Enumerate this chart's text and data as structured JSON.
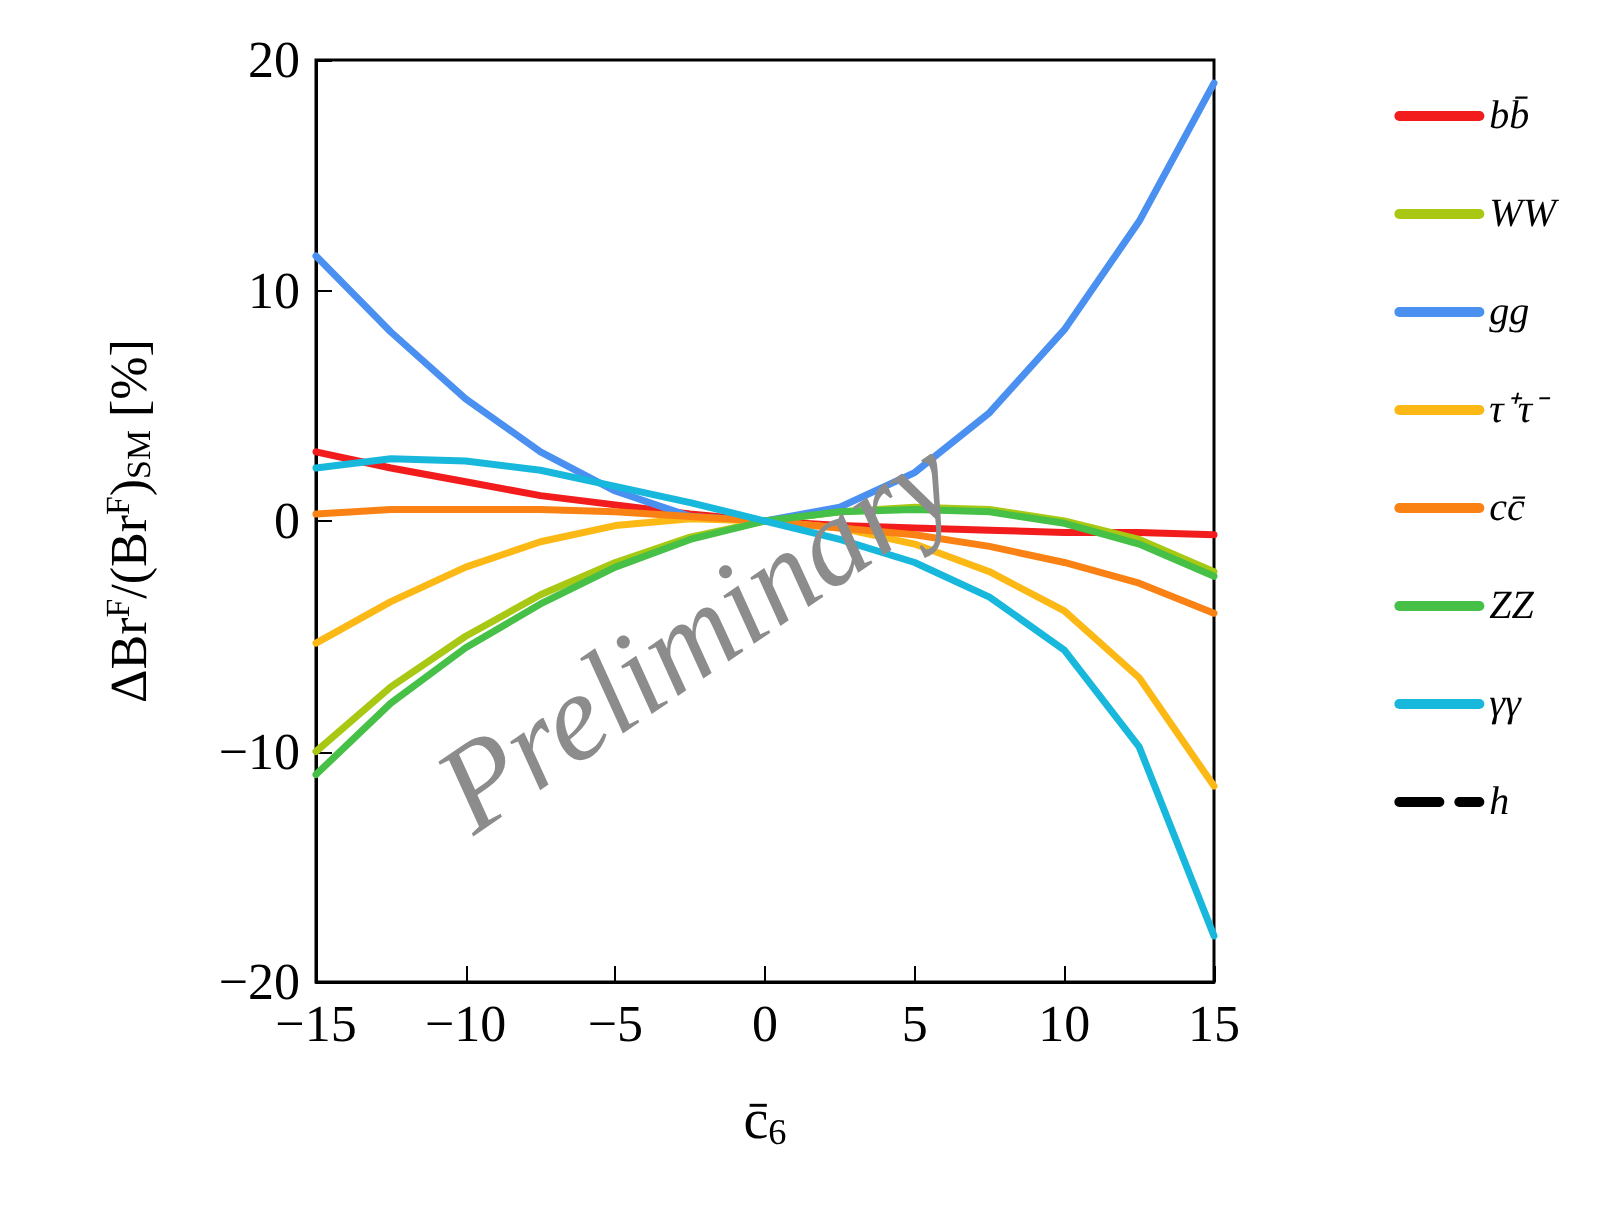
{
  "chart_data": {
    "type": "line",
    "xlabel": "c̄$_{6}$",
    "ylabel": "ΔBr$^{F}$/(Br$^{F}$)$_{SM}$ [%]",
    "x": [
      -15,
      -12.5,
      -10,
      -7.5,
      -5,
      -2.5,
      0,
      2.5,
      5,
      7.5,
      10,
      12.5,
      15
    ],
    "xlim": [
      -15,
      15
    ],
    "xticks": [
      -15,
      -10,
      -5,
      0,
      5,
      10,
      15
    ],
    "ylim": [
      -20,
      20
    ],
    "yticks": [
      -20,
      -10,
      0,
      10,
      20
    ],
    "series": [
      {
        "name": "bb̄",
        "color": "#f21c1c",
        "values": [
          3.0,
          2.3,
          1.7,
          1.1,
          0.7,
          0.3,
          0,
          -0.2,
          -0.3,
          -0.4,
          -0.5,
          -0.5,
          -0.6
        ]
      },
      {
        "name": "WW",
        "color": "#a8c814",
        "values": [
          -10,
          -7.2,
          -5.0,
          -3.2,
          -1.8,
          -0.7,
          0,
          0.4,
          0.6,
          0.5,
          0,
          -0.8,
          -2.2
        ]
      },
      {
        "name": "gg",
        "color": "#4a90f0",
        "values": [
          11.5,
          8.2,
          5.3,
          3.0,
          1.3,
          0.2,
          0,
          0.6,
          2.1,
          4.7,
          8.3,
          13.0,
          19
        ]
      },
      {
        "name": "τ⁺τ⁻",
        "color": "#fcb814",
        "values": [
          -5.3,
          -3.5,
          -2.0,
          -0.9,
          -0.2,
          0.1,
          0,
          -0.3,
          -1.0,
          -2.2,
          -3.9,
          -6.8,
          -11.5
        ]
      },
      {
        "name": "cc̄",
        "color": "#fa8214",
        "values": [
          0.3,
          0.5,
          0.5,
          0.5,
          0.4,
          0.2,
          0,
          -0.3,
          -0.6,
          -1.1,
          -1.8,
          -2.7,
          -4.0
        ]
      },
      {
        "name": "ZZ",
        "color": "#46c046",
        "values": [
          -11,
          -7.9,
          -5.5,
          -3.6,
          -2.0,
          -0.8,
          0,
          0.4,
          0.5,
          0.4,
          -0.1,
          -1.0,
          -2.4
        ]
      },
      {
        "name": "γγ",
        "color": "#18b8dc",
        "values": [
          2.3,
          2.7,
          2.6,
          2.2,
          1.5,
          0.8,
          0,
          -0.8,
          -1.8,
          -3.3,
          -5.6,
          -9.8,
          -18
        ]
      },
      {
        "name": "h",
        "color": "#000000",
        "line_style": "dashed",
        "values": [
          null,
          null,
          null,
          null,
          null,
          null,
          null,
          null,
          null,
          null,
          null,
          null,
          null
        ]
      }
    ],
    "legend": "right",
    "grid": false,
    "annotations": [
      "Preliminary"
    ]
  }
}
